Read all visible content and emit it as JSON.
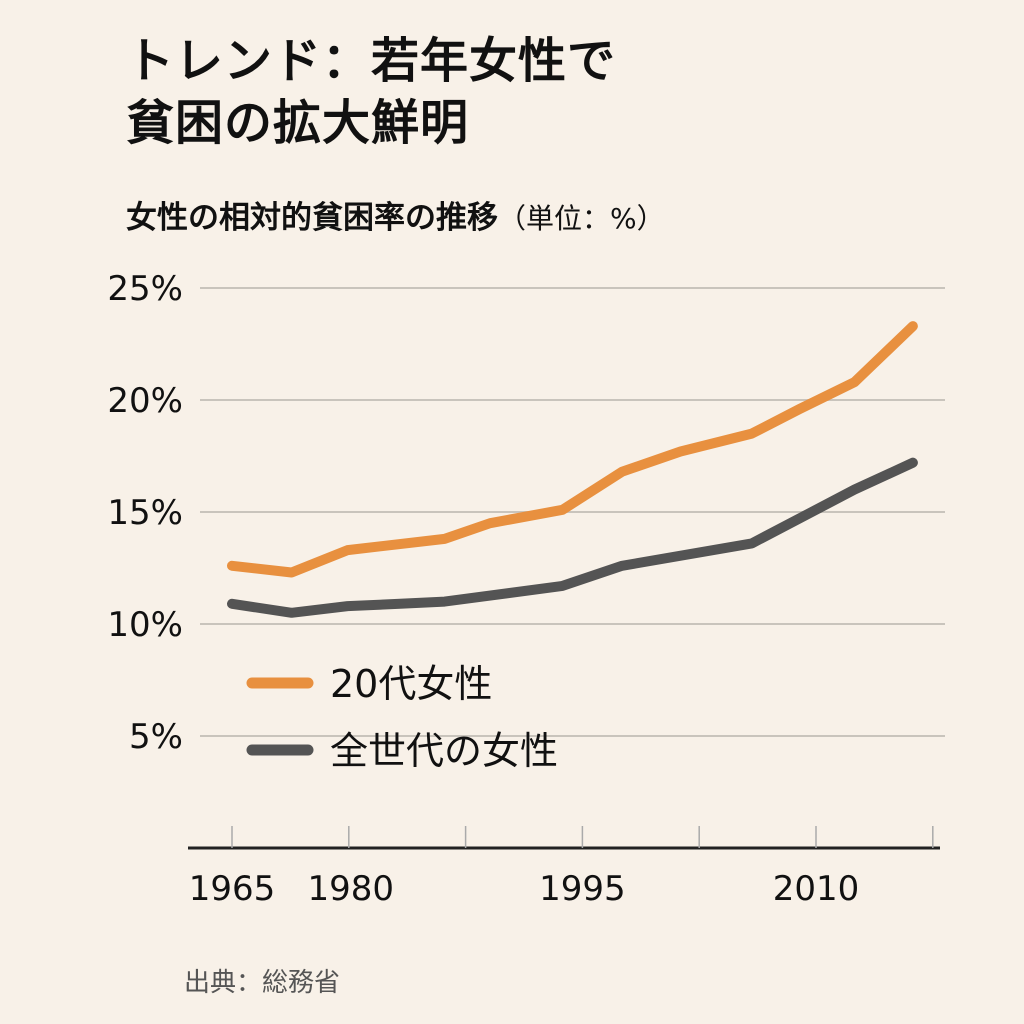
{
  "title_lines": [
    "トレンド：若年女性で",
    "貧困の拡大鮮明"
  ],
  "subtitle": "女性の相対的貧困率の推移",
  "subtitle_unit": "（単位：%）",
  "source": "出典：総務省",
  "chart_data": {
    "type": "line",
    "title": "女性の相対的貧困率の推移",
    "ylabel": "",
    "xlabel": "",
    "ylim": [
      0,
      25
    ],
    "y_ticks": [
      {
        "value": 25,
        "label": "25%"
      },
      {
        "value": 20,
        "label": "20%"
      },
      {
        "value": 15,
        "label": "15%"
      },
      {
        "value": 10,
        "label": "10%"
      },
      {
        "value": 5,
        "label": "5%"
      }
    ],
    "x_ticks": [
      {
        "label": "1965"
      },
      {
        "label": "1980"
      },
      {
        "label": ""
      },
      {
        "label": "1995"
      },
      {
        "label": ""
      },
      {
        "label": "2010"
      },
      {
        "label": ""
      }
    ],
    "grid": true,
    "legend_position": "center-left",
    "series": [
      {
        "name": "20代女性",
        "color": "#e8903f",
        "points": [
          [
            0,
            12.6
          ],
          [
            0.51,
            12.3
          ],
          [
            0.99,
            13.3
          ],
          [
            1.82,
            13.8
          ],
          [
            2.21,
            14.5
          ],
          [
            2.83,
            15.1
          ],
          [
            3.34,
            16.8
          ],
          [
            3.84,
            17.7
          ],
          [
            4.45,
            18.5
          ],
          [
            4.86,
            19.6
          ],
          [
            5.33,
            20.8
          ],
          [
            5.83,
            23.3
          ]
        ]
      },
      {
        "name": "全世代の女性",
        "color": "#545454",
        "points": [
          [
            0,
            10.9
          ],
          [
            0.51,
            10.5
          ],
          [
            0.99,
            10.8
          ],
          [
            1.44,
            10.9
          ],
          [
            1.82,
            11.0
          ],
          [
            2.83,
            11.7
          ],
          [
            3.34,
            12.6
          ],
          [
            4.45,
            13.6
          ],
          [
            5.33,
            16.0
          ],
          [
            5.83,
            17.2
          ]
        ]
      }
    ]
  }
}
